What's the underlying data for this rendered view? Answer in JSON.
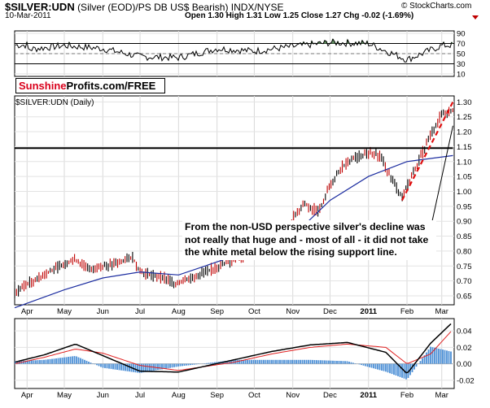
{
  "header": {
    "symbol": "$SILVER:UDN",
    "description": "(Silver (EOD)/PS DB US$ Bearish)  INDX/NYSE",
    "date": "10-Mar-2011",
    "ohlc": "Open 1.30  High 1.31  Low 1.25  Close 1.27  Chg -0.02 (-1.69%)",
    "brand": "© StockCharts.com"
  },
  "logo": {
    "part1": "Sunshine",
    "part2": "Profits.com/FREE"
  },
  "main_label": "$SILVER:UDN (Daily)",
  "annotation": "From the non-USD perspective silver's decline was not really that huge and - most of all - it did not take the white metal below the rising support line.",
  "colors": {
    "price_bars": "#c00000",
    "ma": "#1c2da0",
    "support": "#000000",
    "trend": "#e01010",
    "macd_line": "#000000",
    "signal": "#e02020",
    "hist": "#4b8fd6",
    "rsi_fill": "#5f8f5f"
  },
  "chart_data": [
    {
      "type": "line",
      "panel": "RSI",
      "y_ticks": [
        10,
        30,
        50,
        70,
        90
      ],
      "ylim": [
        5,
        95
      ],
      "reference_lines": [
        30,
        50,
        70
      ],
      "x": [
        "2010-04-01",
        "2010-05-01",
        "2010-06-01",
        "2010-07-01",
        "2010-08-01",
        "2010-09-01",
        "2010-10-01",
        "2010-11-01",
        "2010-12-01",
        "2011-01-01",
        "2011-02-01",
        "2011-03-01",
        "2011-03-10"
      ],
      "values": [
        58,
        66,
        60,
        44,
        42,
        60,
        55,
        64,
        72,
        70,
        38,
        66,
        67
      ]
    },
    {
      "type": "line",
      "panel": "Price",
      "title": "$SILVER:UDN (Daily)",
      "y_ticks": [
        0.65,
        0.7,
        0.75,
        0.8,
        0.85,
        0.9,
        0.95,
        1.0,
        1.05,
        1.1,
        1.15,
        1.2,
        1.25,
        1.3
      ],
      "ylim": [
        0.62,
        1.32
      ],
      "x_ticks": [
        "Apr",
        "May",
        "Jun",
        "Jul",
        "Aug",
        "Sep",
        "Oct",
        "Nov",
        "Dec",
        "2011",
        "Feb",
        "Mar"
      ],
      "series": [
        {
          "type": "bars",
          "x": [
            "2010-03-22",
            "2010-04-01",
            "2010-04-15",
            "2010-05-01",
            "2010-05-10",
            "2010-05-20",
            "2010-06-01",
            "2010-06-15",
            "2010-06-25",
            "2010-07-01",
            "2010-07-20",
            "2010-07-30",
            "2010-10-25",
            "2010-11-01",
            "2010-11-10",
            "2010-11-22",
            "2010-12-01",
            "2010-12-10",
            "2010-12-20",
            "2011-01-01",
            "2011-01-10",
            "2011-01-20",
            "2011-01-28",
            "2011-02-08",
            "2011-02-20",
            "2011-03-01",
            "2011-03-10"
          ],
          "values": [
            0.66,
            0.69,
            0.72,
            0.76,
            0.77,
            0.74,
            0.75,
            0.76,
            0.78,
            0.73,
            0.71,
            0.69,
            0.84,
            0.91,
            0.96,
            0.93,
            1.02,
            1.08,
            1.11,
            1.13,
            1.12,
            1.04,
            0.98,
            1.08,
            1.19,
            1.26,
            1.27
          ]
        },
        {
          "type": "line",
          "x": [
            "2010-03-22",
            "2010-05-01",
            "2010-06-01",
            "2010-07-01",
            "2010-08-01",
            "2010-11-01",
            "2010-12-01",
            "2011-01-01",
            "2011-02-01",
            "2011-03-10"
          ],
          "values": [
            0.61,
            0.67,
            0.71,
            0.73,
            0.72,
            0.85,
            0.97,
            1.05,
            1.1,
            1.12
          ]
        }
      ],
      "lines": [
        {
          "x": [
            "2010-03-22",
            "2011-03-10"
          ],
          "values": [
            1.145,
            1.145
          ]
        },
        {
          "x": [
            "2011-01-28",
            "2011-03-10"
          ],
          "values": [
            0.97,
            1.3
          ]
        },
        {
          "x": [
            "2011-02-20",
            "2011-03-10"
          ],
          "values": [
            1.03,
            1.22
          ]
        }
      ]
    },
    {
      "type": "line",
      "panel": "MACD",
      "y_ticks": [
        -0.02,
        0.0,
        0.02,
        0.04
      ],
      "ylim": [
        -0.03,
        0.055
      ],
      "x_ticks": [
        "Apr",
        "May",
        "Jun",
        "Jul",
        "Aug",
        "Sep",
        "Oct",
        "Nov",
        "Dec",
        "2011",
        "Feb",
        "Mar"
      ],
      "x": [
        "2010-03-22",
        "2010-04-15",
        "2010-05-10",
        "2010-06-01",
        "2010-07-01",
        "2010-08-01",
        "2010-09-15",
        "2010-10-15",
        "2010-11-15",
        "2010-12-15",
        "2011-01-15",
        "2011-02-01",
        "2011-02-20",
        "2011-03-10"
      ],
      "series": [
        {
          "values": [
            0.002,
            0.011,
            0.024,
            0.01,
            -0.009,
            -0.01,
            0.005,
            0.015,
            0.023,
            0.026,
            0.014,
            -0.012,
            0.025,
            0.051
          ]
        },
        {
          "values": [
            0.0,
            0.008,
            0.018,
            0.013,
            -0.002,
            -0.008,
            0.002,
            0.012,
            0.02,
            0.024,
            0.02,
            0.0,
            0.012,
            0.042
          ]
        }
      ]
    }
  ]
}
